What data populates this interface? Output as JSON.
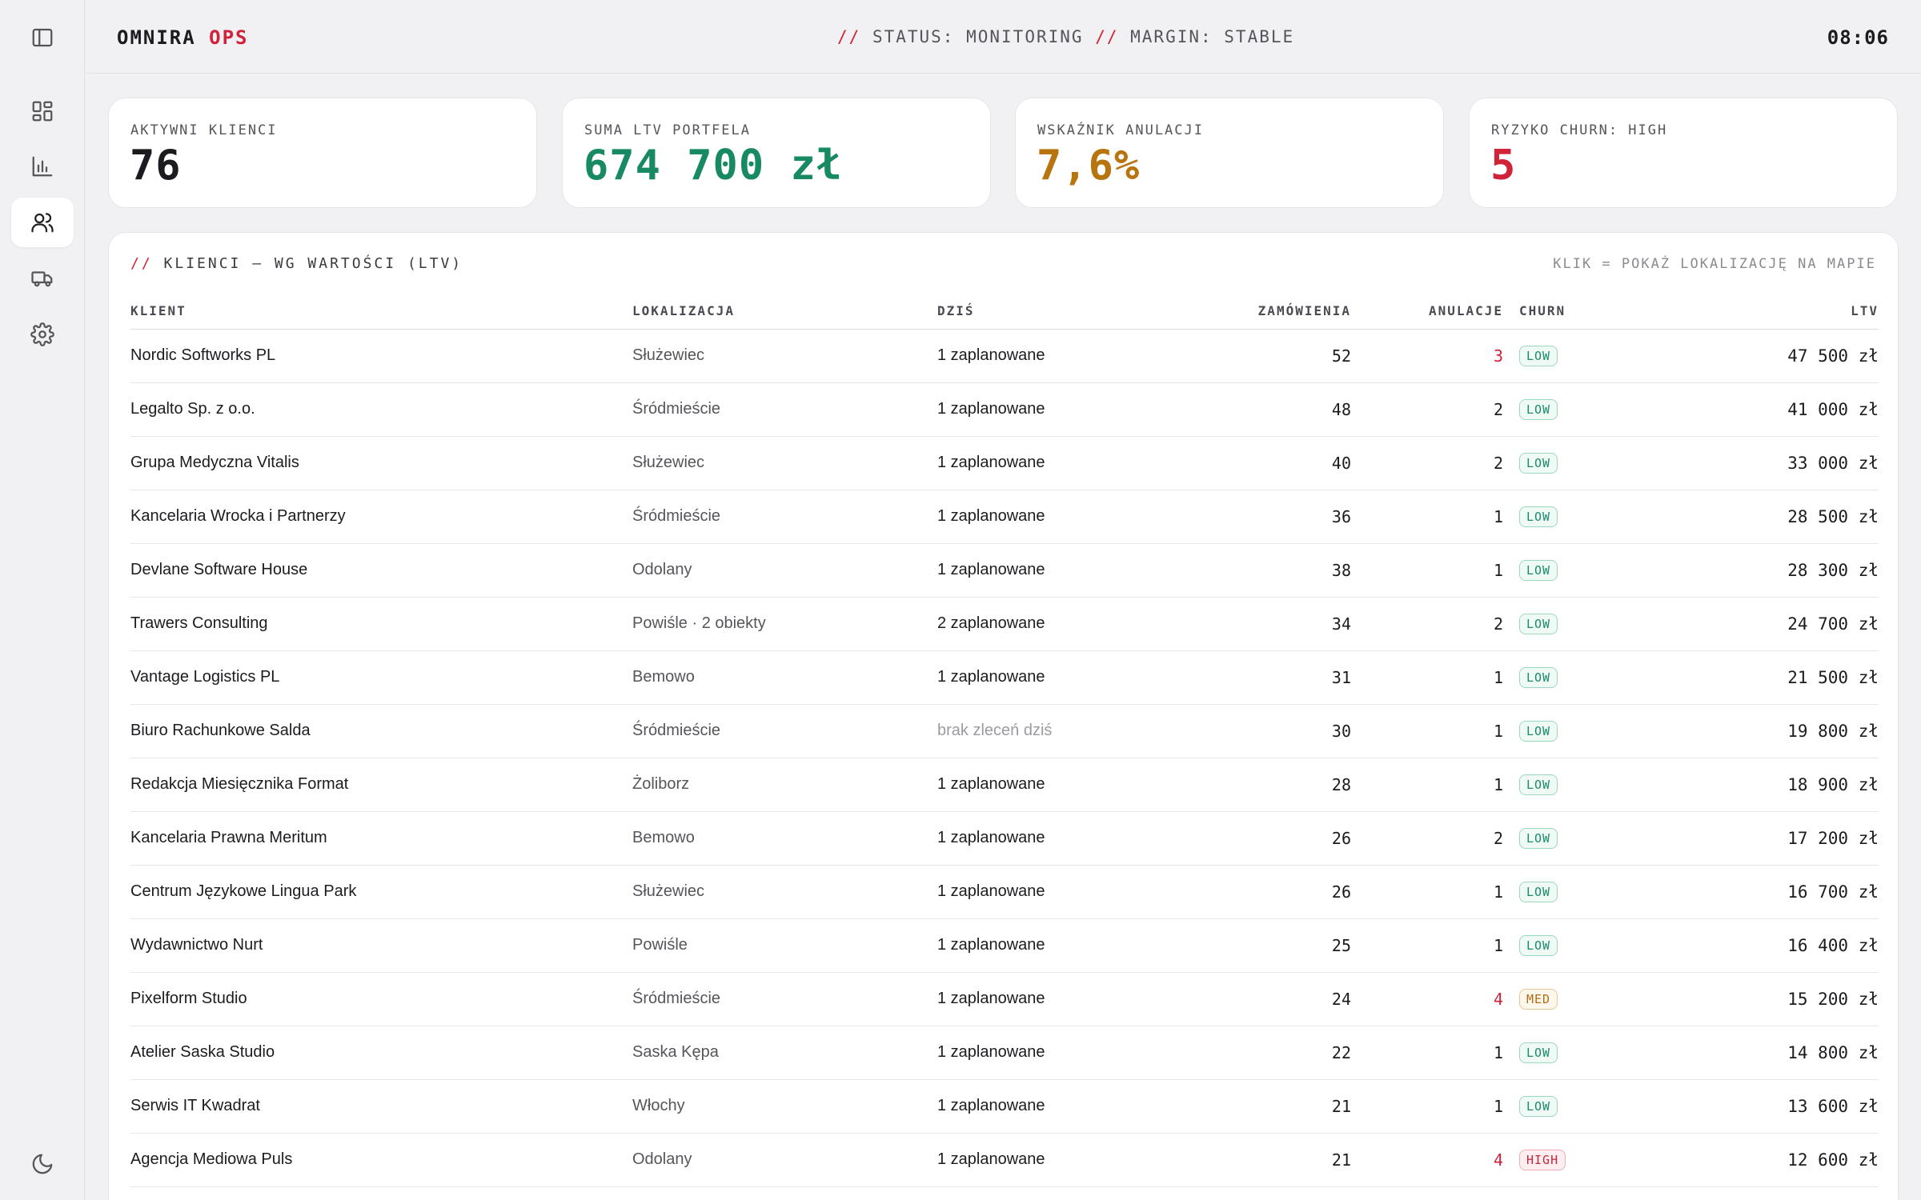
{
  "brand": {
    "name": "OMNIRA",
    "suffix": "OPS"
  },
  "status": {
    "sep": "//",
    "status_text": "STATUS: MONITORING",
    "margin_text": "MARGIN: STABLE"
  },
  "clock": "08:06",
  "sidebar": {
    "items": [
      {
        "icon": "dashboard-icon"
      },
      {
        "icon": "chart-icon"
      },
      {
        "icon": "users-icon",
        "active": true
      },
      {
        "icon": "truck-icon"
      },
      {
        "icon": "gear-icon"
      }
    ],
    "toggle_icon": "sidebar-toggle-icon",
    "theme_icon": "moon-icon"
  },
  "kpis": [
    {
      "label": "AKTYWNI KLIENCI",
      "value": "76",
      "color": "#1c1c20"
    },
    {
      "label": "SUMA LTV PORTFELA",
      "value": "674 700 zł",
      "color": "#178a62"
    },
    {
      "label": "WSKAŹNIK ANULACJI",
      "value": "7,6%",
      "color": "#b8740e"
    },
    {
      "label": "RYZYKO CHURN: HIGH",
      "value": "5",
      "color": "#d0233a"
    }
  ],
  "table": {
    "title_prefix": "//",
    "title": "KLIENCI — WG WARTOŚCI (LTV)",
    "hint": "KLIK = POKAŻ LOKALIZACJĘ NA MAPIE",
    "columns": {
      "client": "KLIENT",
      "location": "LOKALIZACJA",
      "today": "DZIŚ",
      "orders": "ZAMÓWIENIA",
      "cancellations": "ANULACJE",
      "churn": "CHURN",
      "ltv": "LTV"
    },
    "rows": [
      {
        "client": "Nordic Softworks PL",
        "location": "Służewiec",
        "today": "1 zaplanowane",
        "orders": "52",
        "cancellations": "3",
        "cancel_alert": true,
        "churn": "LOW",
        "ltv": "47 500 zł"
      },
      {
        "client": "Legalto Sp. z o.o.",
        "location": "Śródmieście",
        "today": "1 zaplanowane",
        "orders": "48",
        "cancellations": "2",
        "cancel_alert": false,
        "churn": "LOW",
        "ltv": "41 000 zł"
      },
      {
        "client": "Grupa Medyczna Vitalis",
        "location": "Służewiec",
        "today": "1 zaplanowane",
        "orders": "40",
        "cancellations": "2",
        "cancel_alert": false,
        "churn": "LOW",
        "ltv": "33 000 zł"
      },
      {
        "client": "Kancelaria Wrocka i Partnerzy",
        "location": "Śródmieście",
        "today": "1 zaplanowane",
        "orders": "36",
        "cancellations": "1",
        "cancel_alert": false,
        "churn": "LOW",
        "ltv": "28 500 zł"
      },
      {
        "client": "Devlane Software House",
        "location": "Odolany",
        "today": "1 zaplanowane",
        "orders": "38",
        "cancellations": "1",
        "cancel_alert": false,
        "churn": "LOW",
        "ltv": "28 300 zł"
      },
      {
        "client": "Trawers Consulting",
        "location": "Powiśle · 2 obiekty",
        "today": "2 zaplanowane",
        "orders": "34",
        "cancellations": "2",
        "cancel_alert": false,
        "churn": "LOW",
        "ltv": "24 700 zł"
      },
      {
        "client": "Vantage Logistics PL",
        "location": "Bemowo",
        "today": "1 zaplanowane",
        "orders": "31",
        "cancellations": "1",
        "cancel_alert": false,
        "churn": "LOW",
        "ltv": "21 500 zł"
      },
      {
        "client": "Biuro Rachunkowe Salda",
        "location": "Śródmieście",
        "today": "brak zleceń dziś",
        "today_muted": true,
        "orders": "30",
        "cancellations": "1",
        "cancel_alert": false,
        "churn": "LOW",
        "ltv": "19 800 zł"
      },
      {
        "client": "Redakcja Miesięcznika Format",
        "location": "Żoliborz",
        "today": "1 zaplanowane",
        "orders": "28",
        "cancellations": "1",
        "cancel_alert": false,
        "churn": "LOW",
        "ltv": "18 900 zł"
      },
      {
        "client": "Kancelaria Prawna Meritum",
        "location": "Bemowo",
        "today": "1 zaplanowane",
        "orders": "26",
        "cancellations": "2",
        "cancel_alert": false,
        "churn": "LOW",
        "ltv": "17 200 zł"
      },
      {
        "client": "Centrum Językowe Lingua Park",
        "location": "Służewiec",
        "today": "1 zaplanowane",
        "orders": "26",
        "cancellations": "1",
        "cancel_alert": false,
        "churn": "LOW",
        "ltv": "16 700 zł"
      },
      {
        "client": "Wydawnictwo Nurt",
        "location": "Powiśle",
        "today": "1 zaplanowane",
        "orders": "25",
        "cancellations": "1",
        "cancel_alert": false,
        "churn": "LOW",
        "ltv": "16 400 zł"
      },
      {
        "client": "Pixelform Studio",
        "location": "Śródmieście",
        "today": "1 zaplanowane",
        "orders": "24",
        "cancellations": "4",
        "cancel_alert": true,
        "churn": "MED",
        "ltv": "15 200 zł"
      },
      {
        "client": "Atelier Saska Studio",
        "location": "Saska Kępa",
        "today": "1 zaplanowane",
        "orders": "22",
        "cancellations": "1",
        "cancel_alert": false,
        "churn": "LOW",
        "ltv": "14 800 zł"
      },
      {
        "client": "Serwis IT Kwadrat",
        "location": "Włochy",
        "today": "1 zaplanowane",
        "orders": "21",
        "cancellations": "1",
        "cancel_alert": false,
        "churn": "LOW",
        "ltv": "13 600 zł"
      },
      {
        "client": "Agencja Mediowa Puls",
        "location": "Odolany",
        "today": "1 zaplanowane",
        "orders": "21",
        "cancellations": "4",
        "cancel_alert": true,
        "churn": "HIGH",
        "ltv": "12 600 zł"
      }
    ]
  }
}
